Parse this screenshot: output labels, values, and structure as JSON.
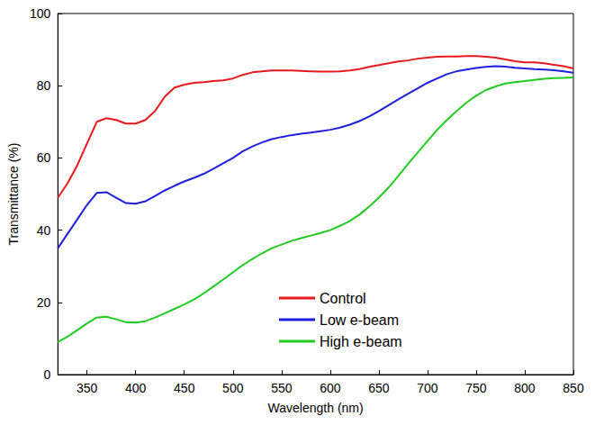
{
  "chart_data": {
    "type": "line",
    "x_label": "Wavelength (nm)",
    "y_label": "Transmittance (%)",
    "x": [
      320,
      330,
      340,
      350,
      360,
      370,
      380,
      390,
      400,
      410,
      420,
      430,
      440,
      450,
      460,
      470,
      480,
      490,
      500,
      510,
      520,
      530,
      540,
      550,
      560,
      570,
      580,
      590,
      600,
      610,
      620,
      630,
      640,
      650,
      660,
      670,
      680,
      690,
      700,
      710,
      720,
      730,
      740,
      750,
      760,
      770,
      780,
      790,
      800,
      810,
      820,
      830,
      840,
      850
    ],
    "series": [
      {
        "name": "Control",
        "color": "#e8191c",
        "line_style": "solid",
        "marker": "none",
        "values": [
          49,
          53,
          58,
          64,
          70,
          71,
          70.5,
          69.5,
          69.5,
          70.5,
          73,
          77,
          79.5,
          80.3,
          80.8,
          81,
          81.3,
          81.5,
          82,
          83,
          83.7,
          84,
          84.2,
          84.2,
          84.2,
          84.1,
          84,
          83.9,
          83.9,
          84,
          84.2,
          84.6,
          85.2,
          85.7,
          86.2,
          86.7,
          87,
          87.5,
          87.8,
          88,
          88.1,
          88.1,
          88.2,
          88.2,
          88,
          87.8,
          87.3,
          86.8,
          86.5,
          86.5,
          86.2,
          85.8,
          85.4,
          84.8
        ]
      },
      {
        "name": "Low e-beam",
        "color": "#1f1fe0",
        "line_style": "solid",
        "marker": "none",
        "values": [
          35,
          39,
          43,
          47,
          50.3,
          50.5,
          49,
          47.5,
          47.3,
          48,
          49.5,
          51,
          52.3,
          53.5,
          54.5,
          55.6,
          57,
          58.5,
          60,
          61.8,
          63.2,
          64.3,
          65.2,
          65.8,
          66.3,
          66.7,
          67,
          67.4,
          67.8,
          68.4,
          69.2,
          70.2,
          71.5,
          73,
          74.6,
          76.2,
          77.8,
          79.3,
          80.8,
          82,
          83.2,
          84,
          84.5,
          84.9,
          85.2,
          85.4,
          85.3,
          85,
          84.8,
          84.6,
          84.5,
          84.3,
          84,
          83.6
        ]
      },
      {
        "name": "High e-beam",
        "color": "#1fcc1f",
        "line_style": "solid",
        "marker": "none",
        "values": [
          9,
          10.5,
          12.3,
          14.2,
          15.8,
          16,
          15.3,
          14.5,
          14.4,
          14.8,
          15.8,
          17,
          18.2,
          19.4,
          20.8,
          22.5,
          24.4,
          26.3,
          28.3,
          30.3,
          32,
          33.6,
          35,
          36,
          37,
          37.8,
          38.5,
          39.2,
          40,
          41.2,
          42.5,
          44.3,
          46.5,
          49,
          51.8,
          55,
          58.3,
          61.5,
          64.7,
          67.8,
          70.5,
          73,
          75.3,
          77.2,
          78.8,
          79.8,
          80.6,
          81,
          81.3,
          81.6,
          81.9,
          82.1,
          82.2,
          82.3
        ]
      }
    ],
    "xlim": [
      320,
      850
    ],
    "xticks": [
      350,
      400,
      450,
      500,
      550,
      600,
      650,
      700,
      750,
      800,
      850
    ],
    "ylim": [
      0,
      100
    ],
    "yticks": [
      0,
      20,
      40,
      60,
      80,
      100
    ],
    "grid": false,
    "legend": "lower center"
  }
}
